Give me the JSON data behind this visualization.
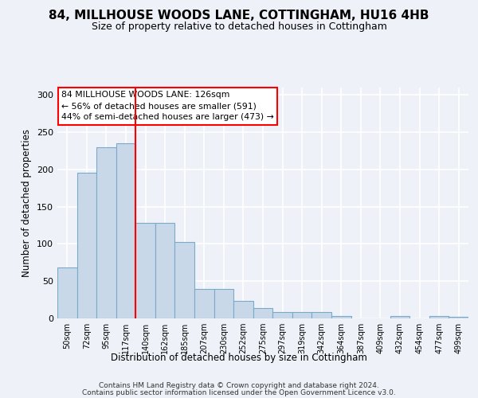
{
  "title": "84, MILLHOUSE WOODS LANE, COTTINGHAM, HU16 4HB",
  "subtitle": "Size of property relative to detached houses in Cottingham",
  "xlabel": "Distribution of detached houses by size in Cottingham",
  "ylabel": "Number of detached properties",
  "bar_color": "#c8d8e8",
  "bar_edge_color": "#7aaac8",
  "vline_color": "red",
  "annotation_line1": "84 MILLHOUSE WOODS LANE: 126sqm",
  "annotation_line2": "← 56% of detached houses are smaller (591)",
  "annotation_line3": "44% of semi-detached houses are larger (473) →",
  "annotation_box_color": "white",
  "annotation_box_edge": "red",
  "categories": [
    "50sqm",
    "72sqm",
    "95sqm",
    "117sqm",
    "140sqm",
    "162sqm",
    "185sqm",
    "207sqm",
    "230sqm",
    "252sqm",
    "275sqm",
    "297sqm",
    "319sqm",
    "342sqm",
    "364sqm",
    "387sqm",
    "409sqm",
    "432sqm",
    "454sqm",
    "477sqm",
    "499sqm"
  ],
  "values": [
    68,
    196,
    230,
    235,
    128,
    128,
    103,
    40,
    40,
    24,
    14,
    9,
    9,
    9,
    3,
    0,
    0,
    3,
    0,
    3,
    2
  ],
  "ylim": [
    0,
    310
  ],
  "yticks": [
    0,
    50,
    100,
    150,
    200,
    250,
    300
  ],
  "background_color": "#eef2f8",
  "grid_color": "white",
  "footer1": "Contains HM Land Registry data © Crown copyright and database right 2024.",
  "footer2": "Contains public sector information licensed under the Open Government Licence v3.0."
}
